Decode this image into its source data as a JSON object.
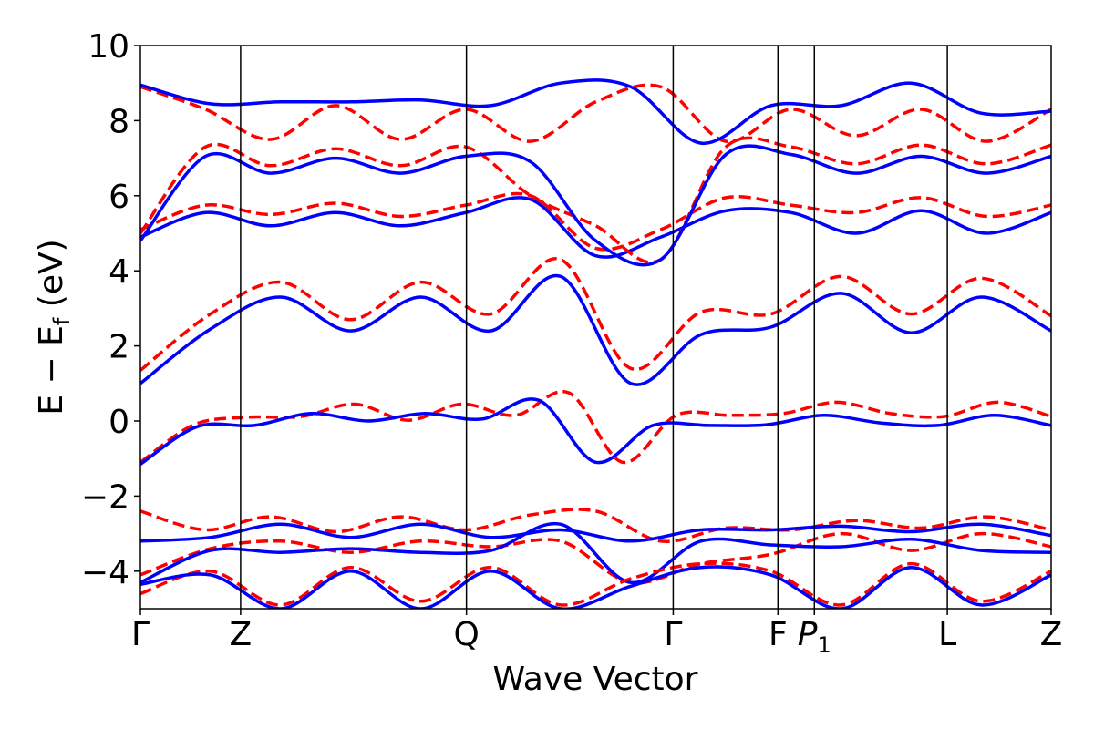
{
  "chart_data": {
    "type": "line",
    "title": "",
    "xlabel": "Wave Vector",
    "ylabel": "E − E_f (eV)",
    "ylabel_parts": {
      "main": "E − E",
      "sub": "f",
      "unit": " (eV)"
    },
    "ylim": [
      -5,
      10
    ],
    "y_ticks": [
      -4,
      -2,
      0,
      2,
      4,
      6,
      8,
      10
    ],
    "y_tick_labels": [
      "−4",
      "−2",
      "0",
      "2",
      "4",
      "6",
      "8",
      "10"
    ],
    "x_ticks": [
      {
        "label": "Γ",
        "pos": 0.0
      },
      {
        "label": "Z",
        "pos": 0.11
      },
      {
        "label": "Q",
        "pos": 0.358
      },
      {
        "label": "Γ",
        "pos": 0.585
      },
      {
        "label": "F",
        "pos": 0.7
      },
      {
        "label": "P",
        "sub": "1",
        "italic": true,
        "pos": 0.74
      },
      {
        "label": "L",
        "pos": 0.886
      },
      {
        "label": "Z",
        "pos": 1.0
      }
    ],
    "grid": false,
    "colors": {
      "solid": "#0000ff",
      "dashed": "#ff0000",
      "kpath_lines": "#000000"
    },
    "series": [
      {
        "style": "dashed",
        "color": "#ff0000",
        "values": [
          -1.1,
          -0.1,
          0.1,
          0.12,
          0.45,
          0.02,
          0.45,
          0.15,
          0.75,
          -1.1,
          0.15,
          0.15,
          0.2,
          0.5,
          0.2,
          0.12,
          0.5,
          0.12
        ]
      },
      {
        "style": "solid",
        "color": "#0000ff",
        "values": [
          -1.15,
          -0.15,
          -0.12,
          0.2,
          0.0,
          0.2,
          0.05,
          0.55,
          -1.1,
          -0.12,
          -0.12,
          -0.1,
          0.15,
          -0.05,
          -0.12,
          0.15,
          -0.12
        ]
      },
      {
        "style": "dashed",
        "color": "#ff0000",
        "values": [
          1.35,
          2.85,
          3.7,
          2.7,
          3.7,
          2.85,
          4.3,
          1.4,
          2.9,
          2.85,
          3.85,
          2.85,
          3.8,
          2.8
        ]
      },
      {
        "style": "solid",
        "color": "#0000ff",
        "values": [
          1.0,
          2.45,
          3.3,
          2.4,
          3.3,
          2.4,
          3.85,
          1.0,
          2.3,
          2.5,
          3.4,
          2.35,
          3.3,
          2.4
        ]
      },
      {
        "style": "dashed",
        "color": "#ff0000",
        "values": [
          5.1,
          5.75,
          5.5,
          5.8,
          5.45,
          5.75,
          6.0,
          4.6,
          5.1,
          5.95,
          5.75,
          5.55,
          5.95,
          5.45,
          5.75
        ]
      },
      {
        "style": "solid",
        "color": "#0000ff",
        "values": [
          4.9,
          5.55,
          5.2,
          5.55,
          5.2,
          5.55,
          5.9,
          4.4,
          4.9,
          5.6,
          5.55,
          5.0,
          5.6,
          5.0,
          5.55
        ]
      },
      {
        "style": "dashed",
        "color": "#ff0000",
        "values": [
          5.0,
          7.3,
          6.8,
          7.25,
          6.8,
          7.3,
          6.0,
          5.2,
          4.3,
          7.3,
          7.3,
          6.85,
          7.35,
          6.85,
          7.35
        ]
      },
      {
        "style": "solid",
        "color": "#0000ff",
        "values": [
          4.8,
          7.05,
          6.6,
          7.0,
          6.6,
          7.05,
          6.9,
          4.8,
          4.3,
          7.1,
          7.1,
          6.6,
          7.05,
          6.6,
          7.05
        ]
      },
      {
        "style": "dashed",
        "color": "#ff0000",
        "values": [
          8.9,
          8.3,
          7.5,
          8.4,
          7.5,
          8.3,
          7.45,
          8.5,
          8.9,
          7.45,
          8.3,
          7.6,
          8.3,
          7.45,
          8.3
        ]
      },
      {
        "style": "solid",
        "color": "#0000ff",
        "values": [
          8.95,
          8.45,
          8.5,
          8.5,
          8.55,
          8.4,
          9.0,
          8.9,
          7.4,
          8.4,
          8.4,
          9.0,
          8.2,
          8.25
        ]
      },
      {
        "style": "dashed",
        "color": "#ff0000",
        "values": [
          -2.4,
          -2.9,
          -2.55,
          -2.95,
          -2.55,
          -2.9,
          -2.5,
          -2.4,
          -3.2,
          -2.85,
          -2.9,
          -2.65,
          -2.85,
          -2.55,
          -2.9
        ]
      },
      {
        "style": "solid",
        "color": "#0000ff",
        "values": [
          -3.2,
          -3.1,
          -2.75,
          -3.1,
          -2.75,
          -3.1,
          -2.9,
          -3.2,
          -2.9,
          -2.9,
          -2.8,
          -2.95,
          -2.75,
          -3.05
        ]
      },
      {
        "style": "dashed",
        "color": "#ff0000",
        "values": [
          -4.1,
          -3.4,
          -3.2,
          -3.5,
          -3.2,
          -3.35,
          -3.2,
          -4.3,
          -3.8,
          -3.55,
          -3.0,
          -3.45,
          -3.0,
          -3.35
        ]
      },
      {
        "style": "solid",
        "color": "#0000ff",
        "values": [
          -4.3,
          -3.45,
          -3.5,
          -3.4,
          -3.5,
          -3.45,
          -2.75,
          -4.3,
          -3.2,
          -3.3,
          -3.35,
          -3.15,
          -3.45,
          -3.5
        ]
      },
      {
        "style": "dashed",
        "color": "#ff0000",
        "values": [
          -4.6,
          -4.0,
          -4.9,
          -3.9,
          -4.8,
          -3.9,
          -4.9,
          -4.2,
          -3.8,
          -4.0,
          -4.9,
          -3.8,
          -4.8,
          -4.0
        ]
      },
      {
        "style": "solid",
        "color": "#0000ff",
        "values": [
          -4.35,
          -4.1,
          -5.0,
          -4.0,
          -5.0,
          -4.0,
          -5.0,
          -4.4,
          -3.9,
          -4.1,
          -5.0,
          -3.9,
          -4.9,
          -4.1
        ]
      }
    ]
  }
}
